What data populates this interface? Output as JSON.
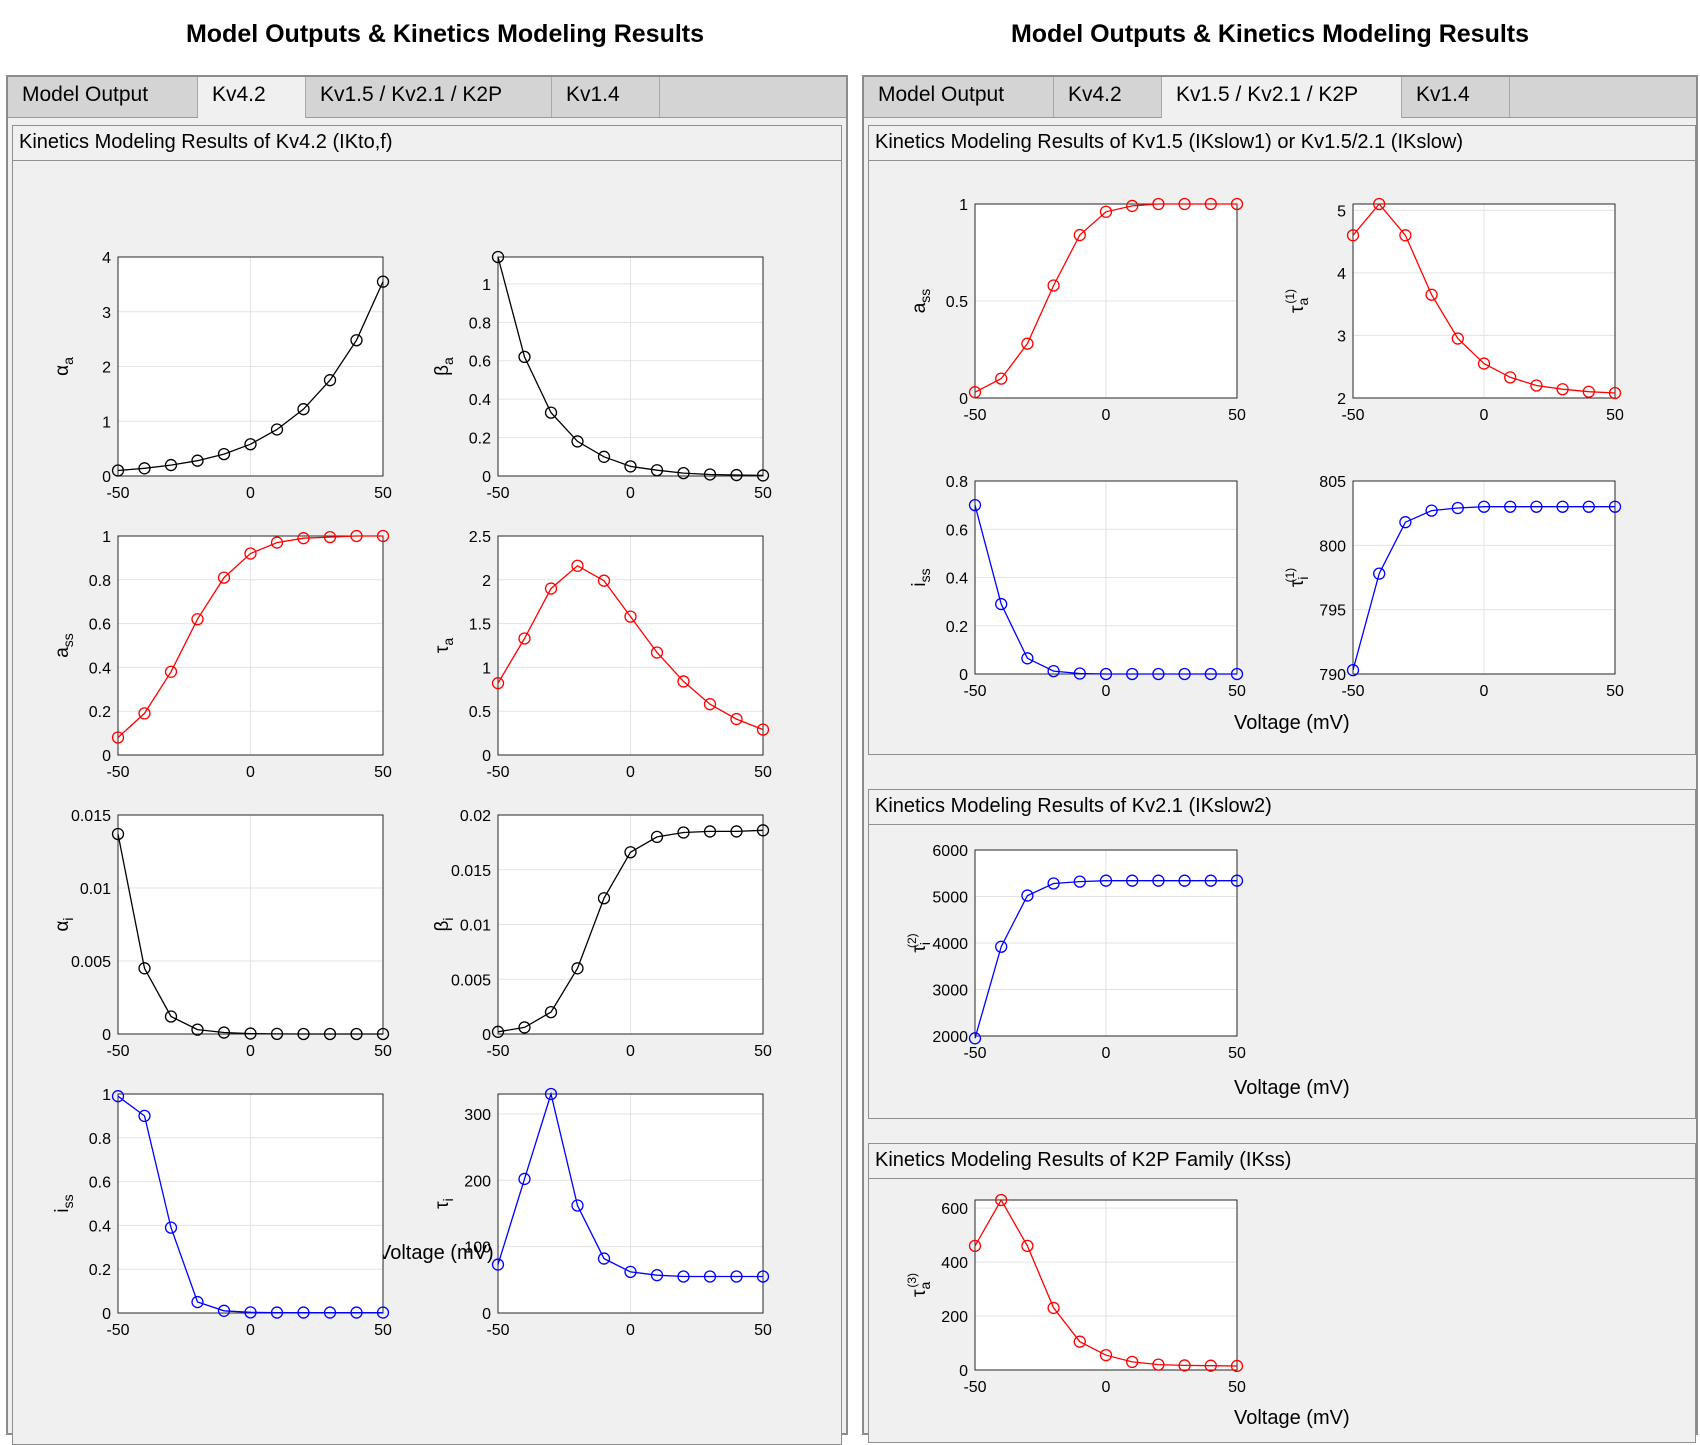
{
  "windows": [
    {
      "title": "Model Outputs & Kinetics Modeling Results",
      "tabs": [
        "Model Output",
        "Kv4.2",
        "Kv1.5 / Kv2.1 / K2P",
        "Kv1.4"
      ],
      "active_tab": "Kv4.2",
      "panels": [
        {
          "title": "Kinetics Modeling Results of Kv4.2 (IKto,f)",
          "xlabel": "Voltage (mV)"
        }
      ]
    },
    {
      "title": "Model Outputs & Kinetics Modeling Results",
      "tabs": [
        "Model Output",
        "Kv4.2",
        "Kv1.5 / Kv2.1 / K2P",
        "Kv1.4"
      ],
      "active_tab": "Kv1.5 / Kv2.1 / K2P",
      "panels": [
        {
          "title": "Kinetics Modeling Results of Kv1.5 (IKslow1) or Kv1.5/2.1 (IKslow)",
          "xlabel": "Voltage (mV)"
        },
        {
          "title": "Kinetics Modeling Results of Kv2.1 (IKslow2)",
          "xlabel": "Voltage (mV)"
        },
        {
          "title": "Kinetics Modeling Results of K2P Family (IKss)",
          "xlabel": "Voltage (mV)"
        }
      ]
    }
  ],
  "colors": {
    "black": "#000000",
    "red": "#ff0000",
    "blue": "#0000ff"
  },
  "chart_data": [
    {
      "type": "line",
      "ylabel": "αa",
      "color": "black",
      "xlim": [
        -50,
        50
      ],
      "ylim": [
        0,
        4
      ],
      "xticks": [
        "-50",
        "0",
        "50"
      ],
      "yticks": [
        "0",
        "1",
        "2",
        "3",
        "4"
      ],
      "x": [
        -50,
        -40,
        -30,
        -20,
        -10,
        0,
        10,
        20,
        30,
        40,
        50
      ],
      "y": [
        0.1,
        0.14,
        0.2,
        0.28,
        0.4,
        0.58,
        0.85,
        1.22,
        1.75,
        2.48,
        3.55
      ]
    },
    {
      "type": "line",
      "ylabel": "βa",
      "color": "black",
      "xlim": [
        -50,
        50
      ],
      "ylim": [
        0,
        1.14
      ],
      "xticks": [
        "-50",
        "0",
        "50"
      ],
      "yticks": [
        "0",
        "0.2",
        "0.4",
        "0.6",
        "0.8",
        "1"
      ],
      "x": [
        -50,
        -40,
        -30,
        -20,
        -10,
        0,
        10,
        20,
        30,
        40,
        50
      ],
      "y": [
        1.14,
        0.62,
        0.33,
        0.18,
        0.1,
        0.05,
        0.03,
        0.015,
        0.008,
        0.005,
        0.003
      ]
    },
    {
      "type": "line",
      "ylabel": "ass",
      "color": "red",
      "xlim": [
        -50,
        50
      ],
      "ylim": [
        0,
        1
      ],
      "xticks": [
        "-50",
        "0",
        "50"
      ],
      "yticks": [
        "0",
        "0.2",
        "0.4",
        "0.6",
        "0.8",
        "1"
      ],
      "x": [
        -50,
        -40,
        -30,
        -20,
        -10,
        0,
        10,
        20,
        30,
        40,
        50
      ],
      "y": [
        0.08,
        0.19,
        0.38,
        0.62,
        0.81,
        0.92,
        0.97,
        0.99,
        0.995,
        1.0,
        1.0
      ]
    },
    {
      "type": "line",
      "ylabel": "τa",
      "color": "red",
      "xlim": [
        -50,
        50
      ],
      "ylim": [
        0,
        2.5
      ],
      "xticks": [
        "-50",
        "0",
        "50"
      ],
      "yticks": [
        "0",
        "0.5",
        "1",
        "1.5",
        "2",
        "2.5"
      ],
      "x": [
        -50,
        -40,
        -30,
        -20,
        -10,
        0,
        10,
        20,
        30,
        40,
        50
      ],
      "y": [
        0.82,
        1.33,
        1.9,
        2.16,
        1.99,
        1.58,
        1.17,
        0.84,
        0.58,
        0.41,
        0.29
      ]
    },
    {
      "type": "line",
      "ylabel": "αi",
      "color": "black",
      "xlim": [
        -50,
        50
      ],
      "ylim": [
        0,
        0.015
      ],
      "xticks": [
        "-50",
        "0",
        "50"
      ],
      "yticks": [
        "0",
        "0.005",
        "0.01",
        "0.015"
      ],
      "x": [
        -50,
        -40,
        -30,
        -20,
        -10,
        0,
        10,
        20,
        30,
        40,
        50
      ],
      "y": [
        0.0137,
        0.0045,
        0.0012,
        0.0003,
        0.0001,
        3e-05,
        1e-05,
        0,
        0,
        0,
        0
      ]
    },
    {
      "type": "line",
      "ylabel": "βi",
      "color": "black",
      "xlim": [
        -50,
        50
      ],
      "ylim": [
        0,
        0.02
      ],
      "xticks": [
        "-50",
        "0",
        "50"
      ],
      "yticks": [
        "0",
        "0.005",
        "0.01",
        "0.015",
        "0.02"
      ],
      "x": [
        -50,
        -40,
        -30,
        -20,
        -10,
        0,
        10,
        20,
        30,
        40,
        50
      ],
      "y": [
        0.0002,
        0.0006,
        0.002,
        0.006,
        0.0124,
        0.0166,
        0.018,
        0.0184,
        0.0185,
        0.0185,
        0.0186
      ]
    },
    {
      "type": "line",
      "ylabel": "iss",
      "color": "blue",
      "xlim": [
        -50,
        50
      ],
      "ylim": [
        0,
        1
      ],
      "xticks": [
        "-50",
        "0",
        "50"
      ],
      "yticks": [
        "0",
        "0.2",
        "0.4",
        "0.6",
        "0.8",
        "1"
      ],
      "x": [
        -50,
        -40,
        -30,
        -20,
        -10,
        0,
        10,
        20,
        30,
        40,
        50
      ],
      "y": [
        0.99,
        0.9,
        0.39,
        0.05,
        0.01,
        0.003,
        0.002,
        0.002,
        0.002,
        0.002,
        0.002
      ]
    },
    {
      "type": "line",
      "ylabel": "τi",
      "color": "blue",
      "xlim": [
        -50,
        50
      ],
      "ylim": [
        0,
        330
      ],
      "xticks": [
        "-50",
        "0",
        "50"
      ],
      "yticks": [
        "0",
        "100",
        "200",
        "300"
      ],
      "x": [
        -50,
        -40,
        -30,
        -20,
        -10,
        0,
        10,
        20,
        30,
        40,
        50
      ],
      "y": [
        73,
        202,
        330,
        162,
        82,
        62,
        57,
        55,
        55,
        55,
        55
      ]
    },
    {
      "type": "line",
      "ylabel": "ass",
      "color": "red",
      "xlim": [
        -50,
        50
      ],
      "ylim": [
        0,
        1
      ],
      "xticks": [
        "-50",
        "0",
        "50"
      ],
      "yticks": [
        "0",
        "0.5",
        "1"
      ],
      "x": [
        -50,
        -40,
        -30,
        -20,
        -10,
        0,
        10,
        20,
        30,
        40,
        50
      ],
      "y": [
        0.03,
        0.1,
        0.28,
        0.58,
        0.84,
        0.96,
        0.99,
        1.0,
        1.0,
        1.0,
        1.0
      ]
    },
    {
      "type": "line",
      "ylabel": "τa(1)",
      "color": "red",
      "xlim": [
        -50,
        50
      ],
      "ylim": [
        2,
        5.1
      ],
      "xticks": [
        "-50",
        "0",
        "50"
      ],
      "yticks": [
        "2",
        "3",
        "4",
        "5"
      ],
      "x": [
        -50,
        -40,
        -30,
        -20,
        -10,
        0,
        10,
        20,
        30,
        40,
        50
      ],
      "y": [
        4.6,
        5.1,
        4.6,
        3.65,
        2.95,
        2.55,
        2.33,
        2.2,
        2.14,
        2.1,
        2.08
      ]
    },
    {
      "type": "line",
      "ylabel": "iss",
      "color": "blue",
      "xlim": [
        -50,
        50
      ],
      "ylim": [
        0,
        0.8
      ],
      "xticks": [
        "-50",
        "0",
        "50"
      ],
      "yticks": [
        "0",
        "0.2",
        "0.4",
        "0.6",
        "0.8"
      ],
      "x": [
        -50,
        -40,
        -30,
        -20,
        -10,
        0,
        10,
        20,
        30,
        40,
        50
      ],
      "y": [
        0.7,
        0.29,
        0.065,
        0.012,
        0.002,
        0,
        0,
        0,
        0,
        0,
        0
      ]
    },
    {
      "type": "line",
      "ylabel": "τi(1)",
      "color": "blue",
      "xlim": [
        -50,
        50
      ],
      "ylim": [
        790,
        805
      ],
      "xticks": [
        "-50",
        "0",
        "50"
      ],
      "yticks": [
        "790",
        "795",
        "800",
        "805"
      ],
      "x": [
        -50,
        -40,
        -30,
        -20,
        -10,
        0,
        10,
        20,
        30,
        40,
        50
      ],
      "y": [
        790.3,
        797.8,
        801.8,
        802.7,
        802.9,
        803,
        803,
        803,
        803,
        803,
        803
      ]
    },
    {
      "type": "line",
      "ylabel": "τi(2)",
      "color": "blue",
      "xlim": [
        -50,
        50
      ],
      "ylim": [
        2000,
        6000
      ],
      "xticks": [
        "-50",
        "0",
        "50"
      ],
      "yticks": [
        "2000",
        "3000",
        "4000",
        "5000",
        "6000"
      ],
      "x": [
        -50,
        -40,
        -30,
        -20,
        -10,
        0,
        10,
        20,
        30,
        40,
        50
      ],
      "y": [
        1950,
        3920,
        5020,
        5280,
        5320,
        5340,
        5340,
        5340,
        5340,
        5340,
        5340
      ]
    },
    {
      "type": "line",
      "ylabel": "τa(3)",
      "color": "red",
      "xlim": [
        -50,
        50
      ],
      "ylim": [
        0,
        630
      ],
      "xticks": [
        "-50",
        "0",
        "50"
      ],
      "yticks": [
        "0",
        "200",
        "400",
        "600"
      ],
      "x": [
        -50,
        -40,
        -30,
        -20,
        -10,
        0,
        10,
        20,
        30,
        40,
        50
      ],
      "y": [
        460,
        630,
        460,
        230,
        105,
        55,
        30,
        20,
        17,
        16,
        15
      ]
    }
  ]
}
